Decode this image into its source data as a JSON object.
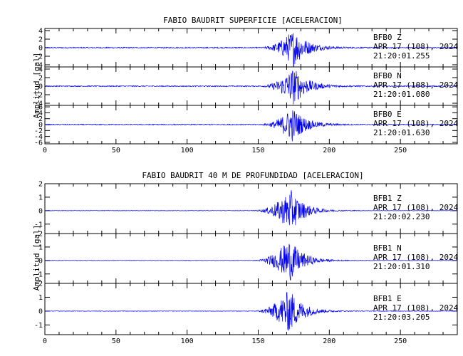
{
  "chart_data": [
    {
      "type": "line",
      "title": "FABIO BAUDRIT SUPERFICIE [ACELERACION]",
      "ylabel": "Amplitud [gal]",
      "x_ticks": [
        "0",
        "50",
        "100",
        "150",
        "200",
        "250"
      ],
      "xlim": [
        0,
        290
      ],
      "traces": [
        {
          "station": "BFB0",
          "component": "Z",
          "date": "APR 17 (108), 2024",
          "time": "21:20:01.255",
          "ylim": [
            -4.5,
            4.5
          ],
          "y_ticks": [
            "4",
            "2",
            "0",
            "-2",
            "-4"
          ],
          "noise": 0.12,
          "onset": 150,
          "peak_time": 175,
          "peak": 4.4
        },
        {
          "station": "BFB0",
          "component": "N",
          "date": "APR 17 (108), 2024",
          "time": "21:20:01.080",
          "ylim": [
            -4.5,
            4.5
          ],
          "y_ticks": [
            "4",
            "2",
            "0",
            "-2",
            "-4"
          ],
          "noise": 0.12,
          "onset": 150,
          "peak_time": 175,
          "peak": 4.4
        },
        {
          "station": "BFB0",
          "component": "E",
          "date": "APR 17 (108), 2024",
          "time": "21:20:01.630",
          "ylim": [
            -6.5,
            6.5
          ],
          "y_ticks": [
            "6",
            "4",
            "2",
            "0",
            "-2",
            "-4",
            "-6"
          ],
          "noise": 0.15,
          "onset": 150,
          "peak_time": 174,
          "peak": 5.8
        }
      ]
    },
    {
      "type": "line",
      "title": "FABIO BAUDRIT 40 M DE PROFUNDIDAD [ACELERACION]",
      "ylabel": "Amplitud [gal]",
      "x_ticks": [
        "0",
        "50",
        "100",
        "150",
        "200",
        "250"
      ],
      "xlim": [
        0,
        290
      ],
      "traces": [
        {
          "station": "BFB1",
          "component": "Z",
          "date": "APR 17 (108), 2024",
          "time": "21:20:02.230",
          "ylim": [
            -1.7,
            2.0
          ],
          "y_ticks": [
            "2",
            "1",
            "0",
            "-1"
          ],
          "noise": 0.015,
          "onset": 145,
          "peak_time": 173,
          "peak": 1.55
        },
        {
          "station": "BFB1",
          "component": "N",
          "date": "APR 17 (108), 2024",
          "time": "21:20:01.310",
          "ylim": [
            -1.7,
            2.0
          ],
          "y_ticks": [
            "2",
            "1",
            "0",
            "-1"
          ],
          "noise": 0.015,
          "onset": 145,
          "peak_time": 172,
          "peak": 1.6
        },
        {
          "station": "BFB1",
          "component": "E",
          "date": "APR 17 (108), 2024",
          "time": "21:20:03.205",
          "ylim": [
            -1.7,
            2.0
          ],
          "y_ticks": [
            "2",
            "1",
            "0",
            "-1"
          ],
          "noise": 0.015,
          "onset": 145,
          "peak_time": 172,
          "peak": 1.6
        }
      ]
    }
  ],
  "colors": {
    "trace": "#0000ee",
    "axes": "#000000",
    "background": "#ffffff"
  }
}
